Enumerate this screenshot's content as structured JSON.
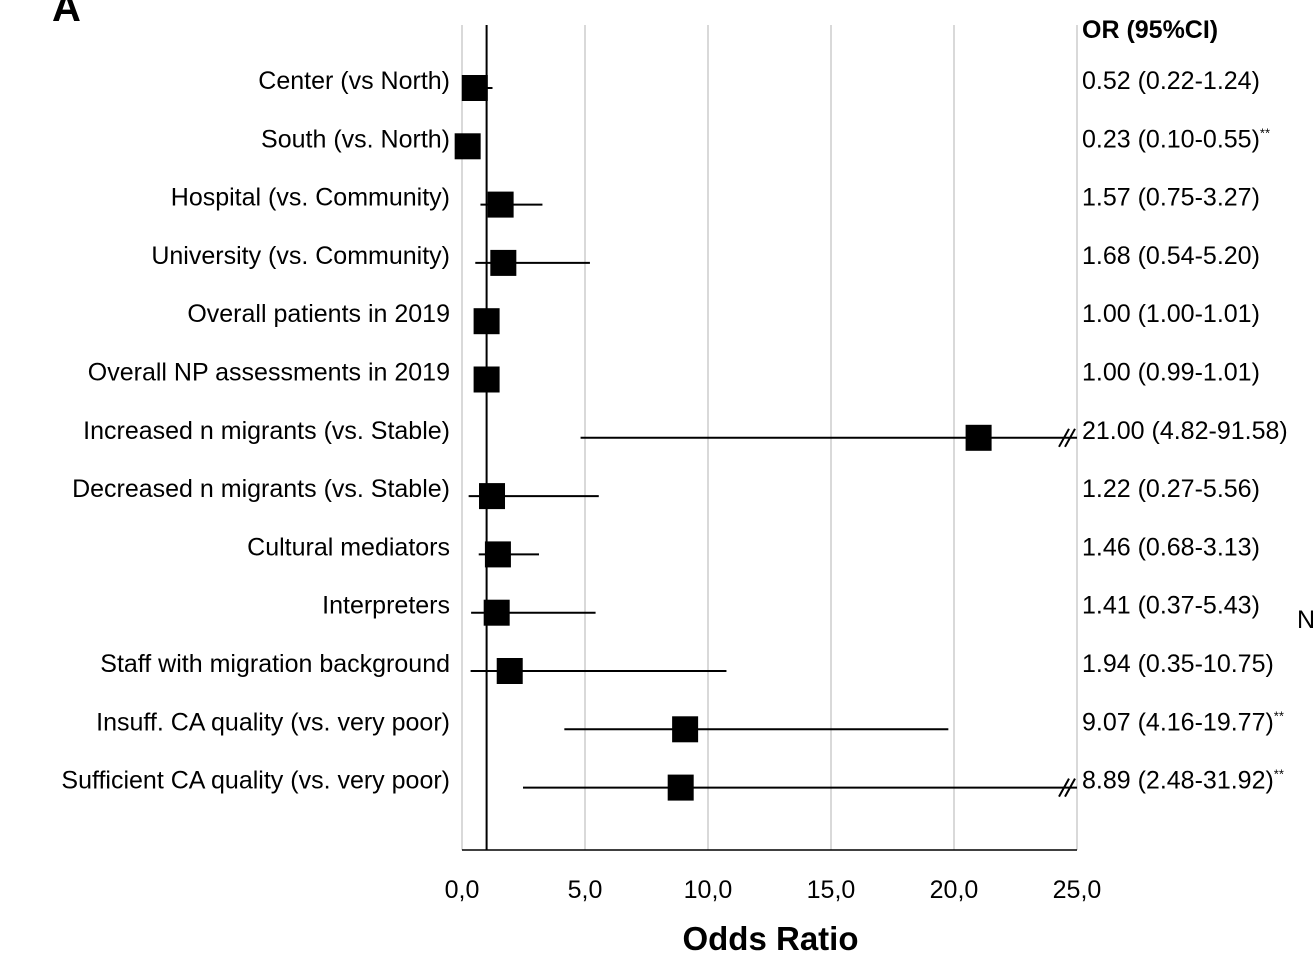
{
  "panel_letter": "A",
  "chart_data": {
    "type": "forest",
    "xlabel": "Odds Ratio",
    "xlim": [
      0,
      25
    ],
    "xticks": [
      "0,0",
      "5,0",
      "10,0",
      "15,0",
      "20,0",
      "25,0"
    ],
    "reference_line": 1,
    "grid": "vertical",
    "or_header": "OR (95%CI)",
    "side_note": "N",
    "rows": [
      {
        "label": "Center (vs North)",
        "or": 0.52,
        "lo": 0.22,
        "hi": 1.24,
        "text": "0.52 (0.22-1.24)",
        "sig": "",
        "truncated": false
      },
      {
        "label": "South (vs. North)",
        "or": 0.23,
        "lo": 0.1,
        "hi": 0.55,
        "text": "0.23 (0.10-0.55)",
        "sig": "**",
        "truncated": false
      },
      {
        "label": "Hospital (vs. Community)",
        "or": 1.57,
        "lo": 0.75,
        "hi": 3.27,
        "text": "1.57 (0.75-3.27)",
        "sig": "",
        "truncated": false
      },
      {
        "label": "University (vs. Community)",
        "or": 1.68,
        "lo": 0.54,
        "hi": 5.2,
        "text": "1.68 (0.54-5.20)",
        "sig": "",
        "truncated": false
      },
      {
        "label": "Overall patients in 2019",
        "or": 1.0,
        "lo": 1.0,
        "hi": 1.01,
        "text": "1.00 (1.00-1.01)",
        "sig": "",
        "truncated": false
      },
      {
        "label": "Overall NP assessments in 2019",
        "or": 1.0,
        "lo": 0.99,
        "hi": 1.01,
        "text": "1.00 (0.99-1.01)",
        "sig": "",
        "truncated": false
      },
      {
        "label": "Increased n migrants (vs. Stable)",
        "or": 21.0,
        "lo": 4.82,
        "hi": 91.58,
        "text": "21.00 (4.82-91.58)",
        "sig": "",
        "truncated": true
      },
      {
        "label": "Decreased n migrants (vs. Stable)",
        "or": 1.22,
        "lo": 0.27,
        "hi": 5.56,
        "text": "1.22 (0.27-5.56)",
        "sig": "",
        "truncated": false
      },
      {
        "label": "Cultural mediators",
        "or": 1.46,
        "lo": 0.68,
        "hi": 3.13,
        "text": "1.46 (0.68-3.13)",
        "sig": "",
        "truncated": false
      },
      {
        "label": "Interpreters",
        "or": 1.41,
        "lo": 0.37,
        "hi": 5.43,
        "text": "1.41 (0.37-5.43)",
        "sig": "",
        "truncated": false
      },
      {
        "label": "Staff with migration background",
        "or": 1.94,
        "lo": 0.35,
        "hi": 10.75,
        "text": "1.94 (0.35-10.75)",
        "sig": "",
        "truncated": false
      },
      {
        "label": "Insuff. CA quality (vs. very poor)",
        "or": 9.07,
        "lo": 4.16,
        "hi": 19.77,
        "text": "9.07 (4.16-19.77)",
        "sig": "**",
        "truncated": false
      },
      {
        "label": "Sufficient CA quality (vs. very poor)",
        "or": 8.89,
        "lo": 2.48,
        "hi": 31.92,
        "text": "8.89 (2.48-31.92)",
        "sig": "**",
        "truncated": true
      }
    ]
  }
}
